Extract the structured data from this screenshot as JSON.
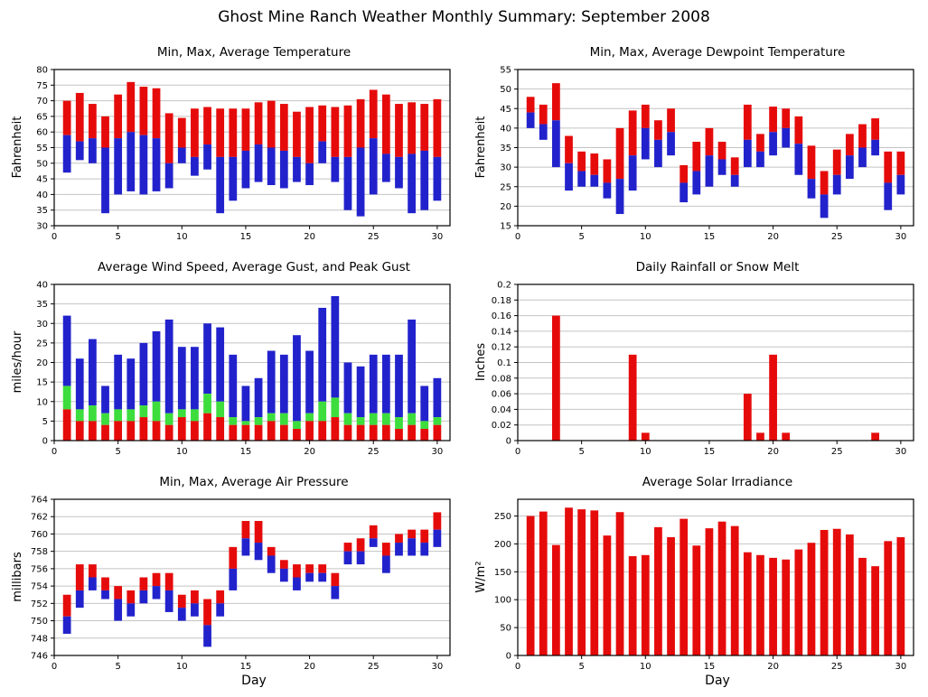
{
  "title": "Ghost Mine Ranch Weather Monthly Summary: September 2008",
  "xlabel": "Day",
  "colors": {
    "red": "#e60b0b",
    "blue": "#2222cc",
    "green": "#3cdd3c",
    "grid": "#c4c4c4",
    "axis": "#000000"
  },
  "days": [
    1,
    2,
    3,
    4,
    5,
    6,
    7,
    8,
    9,
    10,
    11,
    12,
    13,
    14,
    15,
    16,
    17,
    18,
    19,
    20,
    21,
    22,
    23,
    24,
    25,
    26,
    27,
    28,
    29,
    30
  ],
  "chart_data": [
    {
      "id": "temperature",
      "type": "range-stacked",
      "title": "Min, Max, Average Temperature",
      "ylabel": "Fahrenheit",
      "ylim": [
        30,
        80
      ],
      "ystep": 5,
      "xlim": [
        0,
        31
      ],
      "xstep": 5,
      "series": {
        "min": [
          47,
          51,
          50,
          34,
          40,
          41,
          40,
          41,
          42,
          50,
          46,
          48,
          34,
          38,
          42,
          44,
          43,
          42,
          44,
          43,
          50,
          44,
          35,
          33,
          40,
          44,
          42,
          34,
          35,
          38
        ],
        "avg": [
          59,
          57,
          58,
          55,
          58,
          60,
          59,
          58,
          50,
          55,
          52,
          56,
          52,
          52,
          54,
          56,
          55,
          54,
          52,
          50,
          57,
          52,
          52,
          55,
          58,
          53,
          52,
          53,
          54,
          52
        ],
        "max": [
          70,
          72.5,
          69,
          65,
          72,
          76,
          74.5,
          74,
          66,
          64.5,
          67.5,
          68,
          67.5,
          67.5,
          67.5,
          69.5,
          70,
          69,
          66.5,
          68,
          68.5,
          68,
          68.5,
          70.5,
          73.5,
          72,
          69,
          69.5,
          69,
          70.5
        ]
      }
    },
    {
      "id": "dewpoint",
      "type": "range-stacked",
      "title": "Min, Max, Average Dewpoint Temperature",
      "ylabel": "Fahrenheit",
      "ylim": [
        15,
        55
      ],
      "ystep": 5,
      "xlim": [
        0,
        31
      ],
      "xstep": 5,
      "series": {
        "min": [
          40,
          37,
          30,
          24,
          25,
          25,
          22,
          18,
          24,
          32,
          30,
          33,
          21,
          23,
          25,
          28,
          25,
          30,
          30,
          33,
          35,
          28,
          22,
          17,
          23,
          27,
          30,
          33,
          19,
          23
        ],
        "avg": [
          44,
          41,
          42,
          31,
          29,
          28,
          26,
          27,
          33,
          40,
          37,
          39,
          26,
          29,
          33,
          32,
          28,
          37,
          34,
          39,
          40,
          36,
          27,
          23,
          28,
          33,
          35,
          37,
          26,
          28
        ],
        "max": [
          48,
          46,
          51.5,
          38,
          34,
          33.5,
          32,
          40,
          44.5,
          46,
          42,
          45,
          30.5,
          36.5,
          40,
          36.5,
          32.5,
          46,
          38.5,
          45.5,
          45,
          43,
          35.5,
          29,
          34.5,
          38.5,
          41,
          42.5,
          34,
          34
        ]
      }
    },
    {
      "id": "wind",
      "type": "stacked",
      "title": "Average Wind Speed, Average Gust, and Peak Gust",
      "ylabel": "miles/hour",
      "ylim": [
        0,
        40
      ],
      "ystep": 5,
      "xlim": [
        0,
        31
      ],
      "xstep": 5,
      "series": {
        "avg_wind": [
          8,
          5,
          5,
          4,
          5,
          5,
          6,
          5,
          4,
          6,
          5,
          7,
          6,
          4,
          4,
          4,
          5,
          4,
          3,
          5,
          5,
          6,
          4,
          4,
          4,
          4,
          3,
          4,
          3,
          4
        ],
        "avg_gust": [
          14,
          8,
          9,
          7,
          8,
          8,
          9,
          10,
          7,
          8,
          8,
          12,
          10,
          6,
          5,
          6,
          7,
          7,
          5,
          7,
          10,
          11,
          7,
          6,
          7,
          7,
          6,
          7,
          5,
          6
        ],
        "peak_gust": [
          32,
          21,
          26,
          14,
          22,
          21,
          25,
          28,
          31,
          24,
          24,
          30,
          29,
          22,
          14,
          16,
          23,
          22,
          27,
          23,
          34,
          37,
          20,
          19,
          22,
          22,
          22,
          31,
          14,
          16
        ]
      }
    },
    {
      "id": "rainfall",
      "type": "bar",
      "title": "Daily Rainfall or Snow Melt",
      "ylabel": "Inches",
      "ylim": [
        0,
        0.2
      ],
      "ystep": 0.02,
      "xlim": [
        0,
        31
      ],
      "xstep": 5,
      "series": {
        "values": [
          0,
          0,
          0.16,
          0,
          0,
          0,
          0,
          0,
          0.11,
          0.01,
          0,
          0,
          0,
          0,
          0,
          0,
          0,
          0.06,
          0.01,
          0.11,
          0.01,
          0,
          0,
          0,
          0,
          0,
          0,
          0.01,
          0,
          0
        ]
      }
    },
    {
      "id": "pressure",
      "type": "range-stacked",
      "title": "Min, Max, Average Air Pressure",
      "ylabel": "millibars",
      "ylim": [
        746,
        764
      ],
      "ystep": 2,
      "xlim": [
        0,
        31
      ],
      "xstep": 5,
      "series": {
        "min": [
          748.5,
          751.5,
          753.5,
          752.5,
          750,
          750.5,
          752,
          752.5,
          751,
          750,
          750.5,
          747,
          750.5,
          753.5,
          757.5,
          757,
          755.5,
          754.5,
          753.5,
          754.5,
          754.5,
          752.5,
          756.5,
          756.5,
          758.5,
          755.5,
          757.5,
          757.5,
          757.5,
          758.5
        ],
        "avg": [
          750.5,
          753.5,
          755,
          753.5,
          752.5,
          752,
          753.5,
          754,
          753.5,
          751.5,
          752,
          749.5,
          752,
          756,
          759.5,
          759,
          757.5,
          756,
          755,
          755.5,
          755.5,
          754,
          758,
          758,
          759.5,
          757.5,
          759,
          759.5,
          759,
          760.5
        ],
        "max": [
          753,
          756.5,
          756.5,
          755,
          754,
          753.5,
          755,
          755.5,
          755.5,
          753,
          753.5,
          752.5,
          753.5,
          758.5,
          761.5,
          761.5,
          758.5,
          757,
          756.5,
          756.5,
          756.5,
          755.5,
          759,
          759.5,
          761,
          759,
          760,
          760.5,
          760.5,
          762.5
        ]
      }
    },
    {
      "id": "solar",
      "type": "bar",
      "title": "Average Solar Irradiance",
      "ylabel": "W/m²",
      "ylim": [
        0,
        280
      ],
      "ystep": 50,
      "xlim": [
        0,
        31
      ],
      "xstep": 5,
      "series": {
        "values": [
          250,
          258,
          198,
          265,
          262,
          260,
          215,
          257,
          178,
          180,
          230,
          212,
          245,
          197,
          228,
          240,
          232,
          185,
          180,
          175,
          172,
          190,
          202,
          225,
          227,
          217,
          175,
          160,
          205,
          212
        ]
      }
    }
  ]
}
